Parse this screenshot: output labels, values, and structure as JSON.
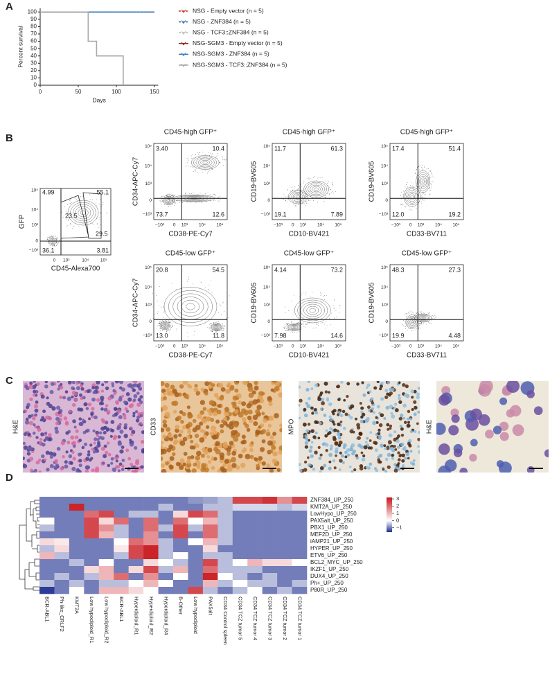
{
  "panel_labels": [
    "A",
    "B",
    "C",
    "D"
  ],
  "chart_data": [
    {
      "type": "line",
      "step": true,
      "y_label": "Percent survival",
      "x_label": "Days",
      "xlim": [
        0,
        155
      ],
      "xticks": [
        0,
        50,
        100,
        150
      ],
      "ylim": [
        0,
        105
      ],
      "yticks": [
        0,
        10,
        20,
        30,
        40,
        50,
        60,
        70,
        80,
        90,
        100
      ],
      "series": [
        {
          "name": "NSG - Empty vector (n = 5)",
          "color": "#c0392b",
          "line_style": "dashed",
          "x": [
            0,
            150
          ],
          "values": [
            100,
            100
          ]
        },
        {
          "name": "NSG - ZNF384 (n = 5)",
          "color": "#2e6fb0",
          "line_style": "dashed",
          "x": [
            0,
            150
          ],
          "values": [
            100,
            100
          ]
        },
        {
          "name": "NSG - TCF3::ZNF384 (n = 5)",
          "color": "#b8b8b8",
          "line_style": "dashed",
          "x": [
            0,
            150
          ],
          "values": [
            100,
            100
          ]
        },
        {
          "name": "NSG-SGM3 - Empty vector (n = 5)",
          "color": "#8e2a1e",
          "line_style": "solid",
          "x": [
            0,
            150
          ],
          "values": [
            100,
            100
          ]
        },
        {
          "name": "NSG-SGM3 - ZNF384 (n = 5)",
          "color": "#3a7fc0",
          "line_style": "solid",
          "x": [
            0,
            150
          ],
          "values": [
            100,
            100
          ]
        },
        {
          "name": "NSG-SGM3 - TCF3::ZNF384 (n = 5)",
          "color": "#aaaaaa",
          "line_style": "solid",
          "x": [
            0,
            63,
            74,
            109
          ],
          "values": [
            100,
            60,
            40,
            0
          ]
        }
      ]
    },
    {
      "type": "heatmap",
      "rows": [
        "ZNF384_UP_250",
        "KMT2A_UP_250",
        "LowHypo_UP_250",
        "PAX5alt_UP_250",
        "PBX1_UP_250",
        "MEF2D_UP_250",
        "iAMP21_UP_250",
        "HYPER_UP_250",
        "ETV6_UP_250",
        "BCL2_MYC_UP_250",
        "IKZF1_UP_250",
        "DUX4_UP_250",
        "Ph+_UP_250",
        "P80R_UP_250"
      ],
      "columns": [
        "BCR-ABL1",
        "Ph-like_CRLF2",
        "KMT2A",
        "Low hypodiploid_R1",
        "Low hypodiploid_R2",
        "BCR-ABL1",
        "Hyperdiploid_R1",
        "Hyperdiploid_R2",
        "Hyperdiploid_R4",
        "B-Other",
        "Low hypodiploid",
        "PAX5alt",
        "CD34 Control spleen",
        "CD34 TCZ tumor 5",
        "CD34 TCZ tumor 4",
        "CD34 TCZ tumor 3",
        "CD34 TCZ tumor 2",
        "CD34 TCZ tumor 1"
      ],
      "values": [
        [
          -1,
          -1,
          -1,
          -1,
          -1,
          -1,
          -1,
          -1,
          -1,
          -1,
          -0.8,
          -0.7,
          -0.5,
          2.5,
          2.5,
          2.8,
          1.5,
          2.5
        ],
        [
          -1,
          -1,
          3,
          -1,
          -1,
          -1,
          -1,
          -1,
          -0.5,
          -1,
          -1,
          -0.5,
          -0.5,
          -0.3,
          -0.3,
          -0.3,
          -0.5,
          -0.3
        ],
        [
          -1,
          -1,
          -1,
          2,
          2.5,
          -1,
          -0.5,
          -0.5,
          -1,
          0.5,
          2.5,
          2,
          -0.5,
          -1,
          -1,
          -1,
          -1,
          -1
        ],
        [
          0,
          -1,
          -1,
          2.5,
          0.5,
          2,
          -1,
          2,
          -1,
          2,
          0,
          1,
          -0.5,
          -1,
          -1,
          -1,
          -1,
          -1
        ],
        [
          -0.5,
          -1,
          -1,
          2.5,
          1.5,
          -0.5,
          -1,
          2,
          -0.5,
          2.5,
          -0.5,
          2,
          -0.5,
          -1,
          -1,
          -1,
          -1,
          -1
        ],
        [
          -1,
          -1,
          -1,
          2.5,
          1,
          -0.5,
          -1,
          1.5,
          -1,
          2.5,
          -1,
          2,
          -0.5,
          -1,
          -1,
          -1,
          -1,
          -1
        ],
        [
          0.5,
          0.3,
          -1,
          -1,
          -1,
          0,
          2,
          1.5,
          -0.5,
          -1,
          0,
          1,
          -0.5,
          -1,
          -1,
          -1,
          -1,
          -1
        ],
        [
          -0.5,
          0.5,
          -1,
          -1,
          -1,
          0.3,
          2.5,
          3,
          -0.5,
          -1,
          -1,
          0.5,
          -1,
          -1,
          -1,
          -1,
          -1,
          -1
        ],
        [
          1,
          -0.5,
          -1,
          -1,
          -1,
          -0.5,
          2.5,
          3,
          -0.5,
          0,
          -1,
          -0.5,
          -0.5,
          -1,
          -1,
          -1,
          -1,
          -1
        ],
        [
          -1,
          -1,
          -0.5,
          -1,
          0,
          -1,
          -1,
          0.5,
          0,
          -0.5,
          -1,
          2.5,
          -0.5,
          0,
          1,
          0.5,
          0.5,
          0
        ],
        [
          -1,
          -1,
          -1,
          0.5,
          1,
          -1,
          0.5,
          2.5,
          -0.5,
          1,
          -1,
          2,
          -0.5,
          -0.5,
          -0.5,
          -1,
          -1,
          -1
        ],
        [
          -1,
          -0.5,
          -1,
          -0.5,
          1,
          2,
          -1,
          1.5,
          -1,
          0,
          -1,
          3,
          0,
          -0.5,
          -1,
          -0.5,
          -1,
          -1
        ],
        [
          -0.5,
          -1,
          -0.5,
          -1,
          -0.5,
          -0.5,
          0,
          1,
          0,
          -1,
          -1,
          1,
          -0.5,
          0,
          -0.5,
          -0.5,
          -1,
          -0.5
        ],
        [
          -1.5,
          -1,
          0,
          -1,
          1,
          1,
          0.5,
          0,
          -1,
          -1,
          2.5,
          -0.5,
          -1,
          -0.5,
          0,
          -1,
          -0.5,
          -1
        ]
      ],
      "zlim": [
        -1.6,
        3.2
      ],
      "colorbar_ticks": [
        3,
        2,
        1,
        0,
        {
          "value": -1,
          "label": "−1"
        }
      ]
    }
  ],
  "flow": {
    "y_ticks": [
      "10⁵",
      "10⁴",
      "10³",
      "0",
      "−10³"
    ],
    "x_ticks": [
      "−10³",
      "0",
      "10³",
      "10⁴",
      "10⁵"
    ],
    "gating": {
      "y_label": "GFP",
      "x_label": "CD45-Alexa700",
      "x_ticks": [
        "0",
        "10³",
        "10⁴",
        "10⁵"
      ],
      "quadrants": [
        "4.99",
        "55.1",
        "36.1",
        "3.81"
      ],
      "gates": [
        "23.5",
        "29.5"
      ]
    },
    "plots": [
      {
        "title": "CD45-high GFP⁺",
        "y_label": "CD34-APC-Cy7",
        "x_label": "CD38-PE-Cy7",
        "quadrants": [
          "3.40",
          "10.4",
          "73.7",
          "12.6"
        ]
      },
      {
        "title": "CD45-high GFP⁺",
        "y_label": "CD19-BV605",
        "x_label": "CD10-BV421",
        "quadrants": [
          "11.7",
          "61.3",
          "19.1",
          "7.89"
        ]
      },
      {
        "title": "CD45-high GFP⁺",
        "y_label": "CD19-BV605",
        "x_label": "CD33-BV711",
        "quadrants": [
          "17.4",
          "51.4",
          "12.0",
          "19.2"
        ]
      },
      {
        "title": "CD45-low GFP⁺",
        "y_label": "CD34-APC-Cy7",
        "x_label": "CD38-PE-Cy7",
        "quadrants": [
          "20.8",
          "54.5",
          "13.0",
          "11.8"
        ]
      },
      {
        "title": "CD45-low GFP⁺",
        "y_label": "CD19-BV605",
        "x_label": "CD10-BV421",
        "quadrants": [
          "4.14",
          "73.2",
          "7.98",
          "14.6"
        ]
      },
      {
        "title": "CD45-low GFP⁺",
        "y_label": "CD19-BV605",
        "x_label": "CD33-BV711",
        "quadrants": [
          "48.3",
          "27.3",
          "19.9",
          "4.48"
        ]
      }
    ]
  },
  "histology": {
    "labels": [
      "H&E",
      "CD33",
      "MPO",
      "H&E"
    ]
  }
}
